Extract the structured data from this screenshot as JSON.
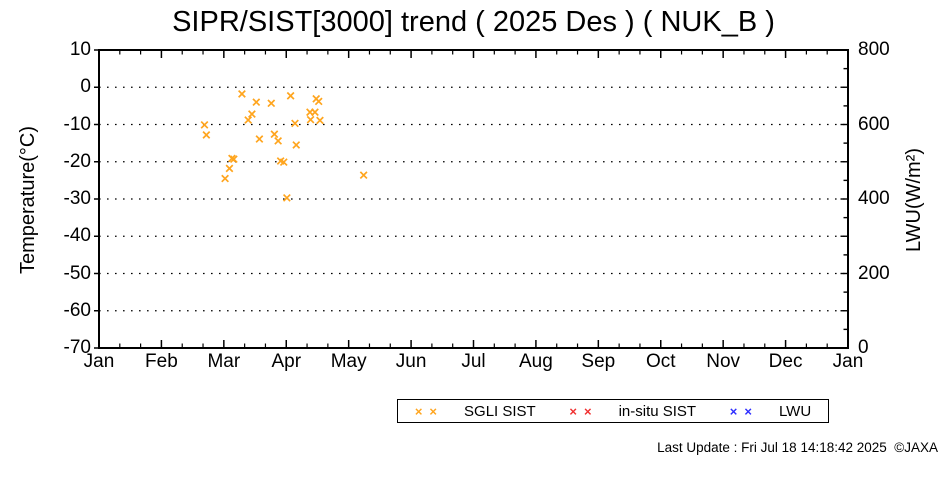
{
  "title": "SIPR/SIST[3000] trend ( 2025 Des ) ( NUK_B )",
  "footer": "Last Update : Fri Jul 18 14:18:42 2025  ©JAXA",
  "chart_data": {
    "type": "scatter",
    "title": "SIPR/SIST[3000] trend ( 2025 Des ) ( NUK_B )",
    "x_axis": {
      "tick_labels": [
        "Jan",
        "Feb",
        "Mar",
        "Apr",
        "May",
        "Jun",
        "Jul",
        "Aug",
        "Sep",
        "Oct",
        "Nov",
        "Dec",
        "Jan"
      ],
      "min_month": 0,
      "max_month": 12,
      "minor_ticks_per_month": 3
    },
    "y_axis_left": {
      "label": "Temperature(°C)",
      "min": -70,
      "max": 10,
      "tick_step": 10,
      "tick_labels": [
        "10",
        "0",
        "-10",
        "-20",
        "-30",
        "-40",
        "-50",
        "-60",
        "-70"
      ],
      "gridline_values": [
        0,
        -10,
        -20,
        -30,
        -40,
        -50,
        -60
      ],
      "grid_style": "dotted"
    },
    "y_axis_right": {
      "label": "LWU(W/m²)",
      "min": 0,
      "max": 800,
      "label_step": 200,
      "tick_step": 50,
      "tick_labels": [
        "800",
        "600",
        "400",
        "200",
        "0"
      ]
    },
    "legend_position": "below-plot-right",
    "series": [
      {
        "name": "SGLI SIST",
        "color": "#FFA51E",
        "marker": "x",
        "points_month_temp": [
          [
            2.29,
            -1.8
          ],
          [
            2.52,
            -4.0
          ],
          [
            2.76,
            -4.3
          ],
          [
            3.07,
            -2.3
          ],
          [
            3.48,
            -3.1
          ],
          [
            3.52,
            -3.8
          ],
          [
            3.38,
            -6.7
          ],
          [
            3.46,
            -6.7
          ],
          [
            2.45,
            -7.2
          ],
          [
            2.39,
            -8.8
          ],
          [
            3.14,
            -9.7
          ],
          [
            3.39,
            -8.7
          ],
          [
            3.54,
            -8.9
          ],
          [
            1.69,
            -10.1
          ],
          [
            1.72,
            -12.8
          ],
          [
            2.57,
            -13.9
          ],
          [
            2.81,
            -12.6
          ],
          [
            2.87,
            -14.4
          ],
          [
            3.16,
            -15.5
          ],
          [
            2.13,
            -19.1
          ],
          [
            2.16,
            -19.3
          ],
          [
            2.09,
            -21.8
          ],
          [
            2.02,
            -24.5
          ],
          [
            2.91,
            -19.8
          ],
          [
            2.96,
            -20.1
          ],
          [
            3.01,
            -29.7
          ],
          [
            4.24,
            -23.6
          ]
        ]
      },
      {
        "name": "in-situ SIST",
        "color": "#F03030",
        "marker": "x",
        "points_month_temp": []
      },
      {
        "name": "LWU",
        "color": "#2D2DFF",
        "marker": "x",
        "points_month_temp": []
      }
    ]
  }
}
